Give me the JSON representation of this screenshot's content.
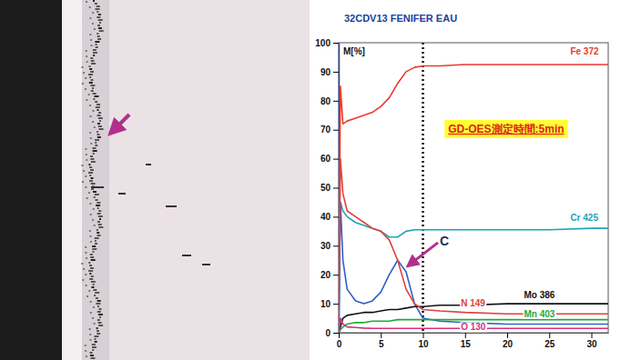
{
  "chart_data": {
    "type": "line",
    "title": "32CDV13 FENIFER EAU",
    "y_label": "M[%]",
    "x": [
      0,
      0.2,
      0.5,
      1,
      2,
      3,
      4,
      5,
      6,
      7,
      8,
      9,
      10,
      12,
      15,
      20,
      25,
      30,
      32
    ],
    "series": [
      {
        "name": "Fe 372",
        "color": "#e83a2e",
        "values": [
          0,
          85,
          72,
          73,
          74,
          75,
          76,
          78,
          81,
          86,
          90,
          91.5,
          92,
          92,
          92.5,
          92.5,
          92.5,
          92.5,
          92.5
        ]
      },
      {
        "name": "Cr 425",
        "color": "#1fa3b5",
        "values": [
          0,
          45,
          42,
          40,
          38,
          37,
          36,
          35,
          33,
          33,
          35,
          35.5,
          35.5,
          35.5,
          35.5,
          35.5,
          35.5,
          36,
          36
        ]
      },
      {
        "name": "C",
        "color": "#2f5fc8",
        "values": [
          0,
          45,
          25,
          15,
          11,
          10,
          11,
          14,
          20,
          25,
          21,
          10,
          5,
          4,
          3.5,
          3,
          3,
          3,
          3
        ]
      },
      {
        "name": "Mo 386",
        "color": "#111111",
        "values": [
          0,
          2,
          5,
          6,
          6.5,
          7,
          7,
          7.5,
          8,
          8,
          8.5,
          9,
          9,
          9.5,
          9.5,
          10,
          10,
          10,
          10
        ]
      },
      {
        "name": "N 149",
        "color": "#e0413a",
        "values": [
          0,
          60,
          48,
          42,
          40,
          38,
          36,
          35,
          32,
          25,
          15,
          10,
          8,
          7.5,
          7,
          6.5,
          6.5,
          6.5,
          6.5
        ]
      },
      {
        "name": "Mn 403",
        "color": "#1faa3a",
        "values": [
          0,
          1,
          2,
          3,
          3.5,
          3.5,
          4,
          4,
          4,
          4.5,
          4.5,
          4.5,
          4.5,
          4.5,
          4.5,
          4.5,
          4.5,
          4.5,
          4.5
        ]
      },
      {
        "name": "O 130",
        "color": "#d6307a",
        "values": [
          0,
          5,
          3,
          2,
          1.8,
          1.6,
          1.5,
          1.5,
          1.5,
          1.5,
          1.5,
          1.5,
          1.5,
          1.5,
          1.5,
          1.5,
          1.5,
          1.5,
          1.5
        ]
      }
    ],
    "xlim": [
      0,
      32
    ],
    "xticks": [
      0,
      5,
      10,
      15,
      20,
      25,
      30
    ],
    "ylim": [
      0,
      100
    ],
    "yticks": [
      0,
      10,
      20,
      30,
      40,
      50,
      60,
      70,
      80,
      90,
      100
    ],
    "grid": false,
    "reference_lines": [
      {
        "x": 10,
        "line_style": "dotted"
      }
    ],
    "annotations": [
      {
        "text": "GD-OES測定時間:5min"
      }
    ]
  }
}
